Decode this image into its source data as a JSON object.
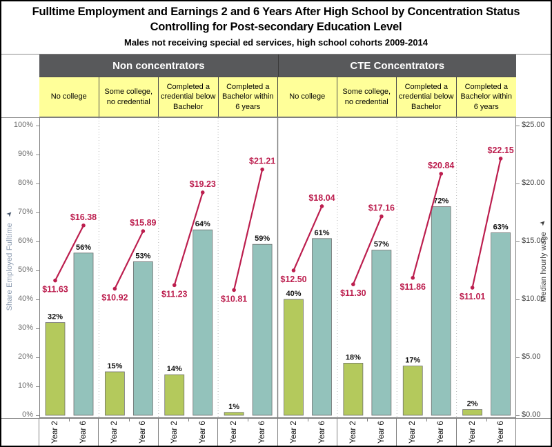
{
  "title": {
    "line1": "Fulltime Employment and Earnings 2 and 6 Years After High School by Concentration Status",
    "line2": "Controlling for Post-secondary Education Level",
    "subtitle": "Males not receiving special ed services, high school cohorts 2009-2014"
  },
  "chart_data": {
    "type": "bar",
    "subtype": "grouped bars (share employed fulltime) with median hourly wage line overlay per panel",
    "x_tick_labels": [
      "Year 2",
      "Year 6"
    ],
    "left_axis": {
      "label": "Share Employed Fulltime",
      "min": 0,
      "max": 100,
      "tick_step": 10,
      "tick_labels": [
        "0%",
        "10%",
        "20%",
        "30%",
        "40%",
        "50%",
        "60%",
        "70%",
        "80%",
        "90%",
        "100%"
      ]
    },
    "right_axis": {
      "label": "Median hourly wage",
      "min": 0,
      "max": 25,
      "tick_step": 5,
      "tick_labels": [
        "$0.00",
        "$5.00",
        "$10.00",
        "$15.00",
        "$20.00",
        "$25.00"
      ]
    },
    "groups": [
      {
        "label": "Non concentrators",
        "panels": [
          {
            "label": "No college",
            "year2_pct": 32,
            "year6_pct": 56,
            "year2_wage": 11.63,
            "year6_wage": 16.38
          },
          {
            "label": "Some college, no credential",
            "year2_pct": 15,
            "year6_pct": 53,
            "year2_wage": 10.92,
            "year6_wage": 15.89
          },
          {
            "label": "Completed a credential below Bachelor",
            "year2_pct": 14,
            "year6_pct": 64,
            "year2_wage": 11.23,
            "year6_wage": 19.23
          },
          {
            "label": "Completed a Bachelor within 6 years",
            "year2_pct": 1,
            "year6_pct": 59,
            "year2_wage": 10.81,
            "year6_wage": 21.21
          }
        ]
      },
      {
        "label": "CTE Concentrators",
        "panels": [
          {
            "label": "No college",
            "year2_pct": 40,
            "year6_pct": 61,
            "year2_wage": 12.5,
            "year6_wage": 18.04
          },
          {
            "label": "Some college, no credential",
            "year2_pct": 18,
            "year6_pct": 57,
            "year2_wage": 11.3,
            "year6_wage": 17.16
          },
          {
            "label": "Completed a credential below Bachelor",
            "year2_pct": 17,
            "year6_pct": 72,
            "year2_wage": 11.86,
            "year6_wage": 20.84
          },
          {
            "label": "Completed a Bachelor within 6 years",
            "year2_pct": 2,
            "year6_pct": 63,
            "year2_wage": 11.01,
            "year6_wage": 22.15
          }
        ]
      }
    ],
    "colors": {
      "year2_bar": "#b4c95c",
      "year6_bar": "#93c2bb",
      "bar_border": "#6e6e6e",
      "wage_line": "#bc1e4e",
      "group_header_bg": "#58595b",
      "group_header_text": "#ffffff",
      "subheader_bg": "#ffff99",
      "left_axis_title": "#8b9bb0",
      "right_axis_title": "#3f3f3f"
    }
  }
}
